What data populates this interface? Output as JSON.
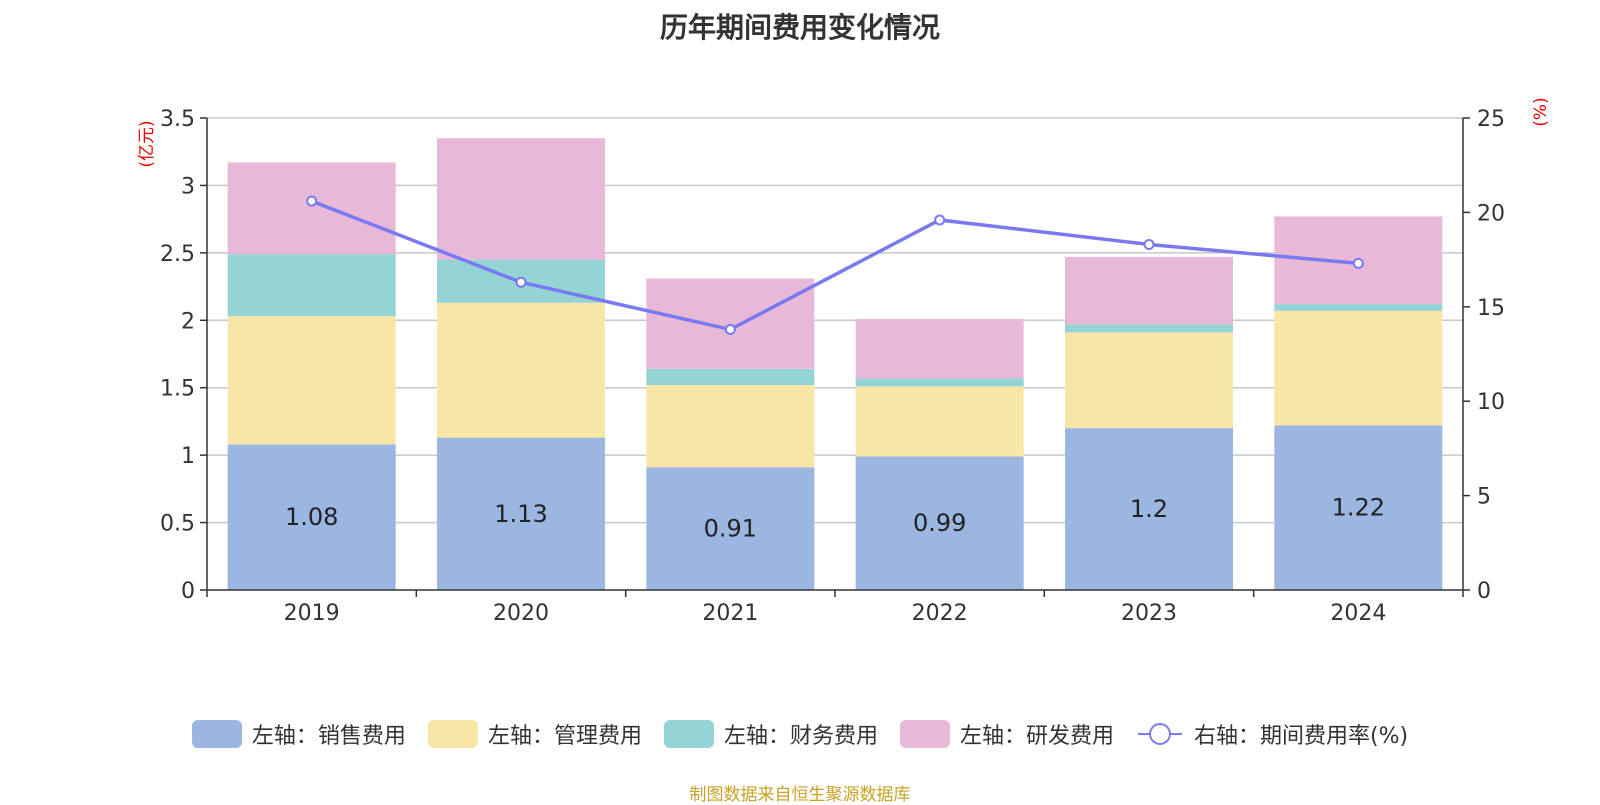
{
  "colors": {
    "sales": "#9bb6e0",
    "admin": "#f8e6a7",
    "finance": "#95d4d5",
    "rnd": "#e8b8d9",
    "rate_line": "#7a7af0",
    "axis_unit": "#ee0000",
    "footer": "#c9a227",
    "grid": "#c8c8c8",
    "axis": "#333333"
  },
  "legend": [
    {
      "key": "sales",
      "label": "左轴：销售费用"
    },
    {
      "key": "admin",
      "label": "左轴：管理费用"
    },
    {
      "key": "finance",
      "label": "左轴：财务费用"
    },
    {
      "key": "rnd",
      "label": "左轴：研发费用"
    },
    {
      "key": "rate_line",
      "label": "右轴：期间费用率(%)"
    }
  ],
  "footer": "制图数据来自恒生聚源数据库",
  "chart_data": {
    "type": "bar",
    "stacked": true,
    "title": "历年期间费用变化情况",
    "categories": [
      "2019",
      "2020",
      "2021",
      "2022",
      "2023",
      "2024"
    ],
    "y_left": {
      "unit_label": "(亿元)",
      "ylim": [
        0,
        3.5
      ],
      "ticks": [
        "0",
        "0.5",
        "1",
        "1.5",
        "2",
        "2.5",
        "3",
        "3.5"
      ]
    },
    "y_right": {
      "unit_label": "(%)",
      "ylim": [
        0,
        25
      ],
      "ticks": [
        "0",
        "5",
        "10",
        "15",
        "20",
        "25"
      ]
    },
    "grid": true,
    "legend_position": "bottom",
    "series": [
      {
        "key": "sales",
        "name": "左轴：销售费用",
        "axis": "left",
        "values": [
          1.08,
          1.13,
          0.91,
          0.99,
          1.2,
          1.22
        ],
        "labels": [
          "1.08",
          "1.13",
          "0.91",
          "0.99",
          "1.2",
          "1.22"
        ]
      },
      {
        "key": "admin",
        "name": "左轴：管理费用",
        "axis": "left",
        "values": [
          0.95,
          1.0,
          0.61,
          0.52,
          0.71,
          0.85
        ]
      },
      {
        "key": "finance",
        "name": "左轴：财务费用",
        "axis": "left",
        "values": [
          0.46,
          0.32,
          0.12,
          0.06,
          0.06,
          0.05
        ]
      },
      {
        "key": "rnd",
        "name": "左轴：研发费用",
        "axis": "left",
        "values": [
          0.68,
          0.9,
          0.67,
          0.44,
          0.5,
          0.65
        ]
      },
      {
        "key": "rate_line",
        "name": "右轴：期间费用率(%)",
        "axis": "right",
        "type": "line",
        "values": [
          20.6,
          16.3,
          13.8,
          19.6,
          18.3,
          17.3
        ]
      }
    ]
  }
}
